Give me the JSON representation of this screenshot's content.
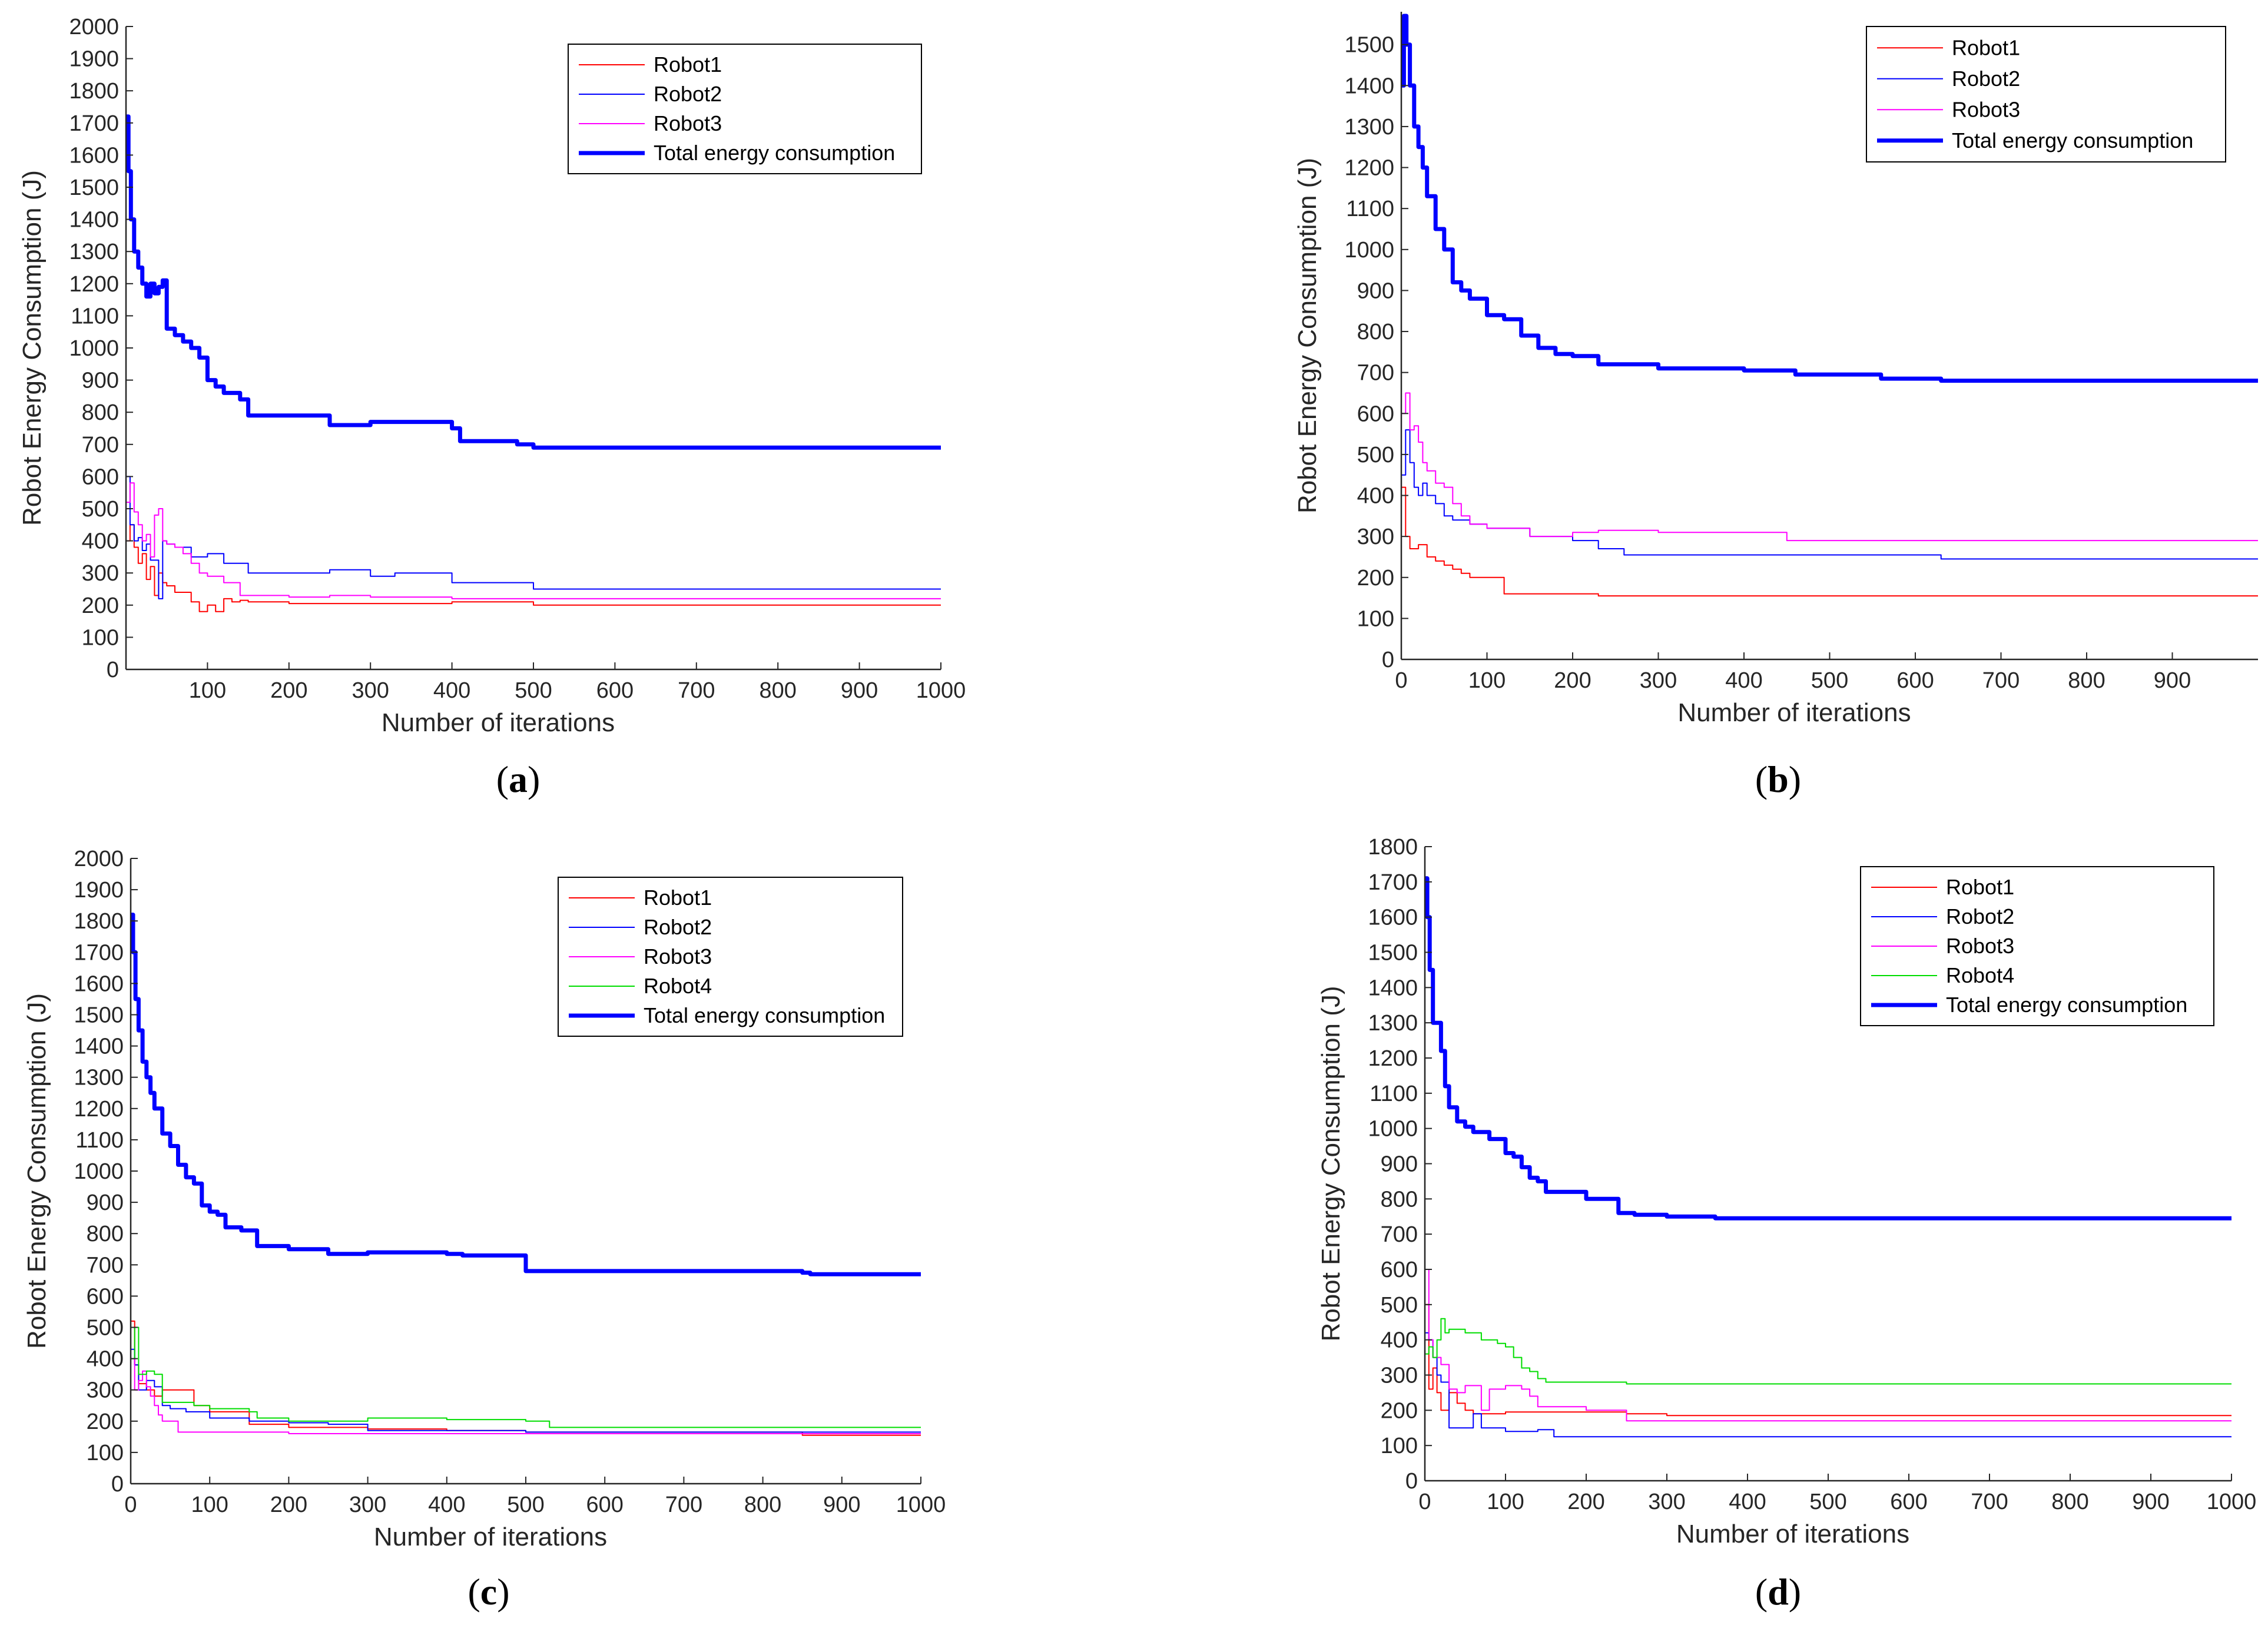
{
  "colors": {
    "robot1": "#ff0000",
    "robot2": "#0000ff",
    "robot3": "#ff00ff",
    "robot4": "#00dd00",
    "total": "#0000ff",
    "axis": "#262626"
  },
  "chart_data": [
    {
      "id": "a",
      "type": "line",
      "panel_label": "a",
      "xlabel": "Number of iterations",
      "ylabel": "Robot Energy Consumption (J)",
      "xlim": [
        0,
        1000
      ],
      "ylim": [
        0,
        2000
      ],
      "xticks": [
        100,
        200,
        300,
        400,
        500,
        600,
        700,
        800,
        900,
        1000
      ],
      "yticks": [
        0,
        100,
        200,
        300,
        400,
        500,
        600,
        700,
        800,
        900,
        1000,
        1100,
        1200,
        1300,
        1400,
        1500,
        1600,
        1700,
        1800,
        1900,
        2000
      ],
      "legend": "top-right",
      "series": [
        {
          "name": "Robot1",
          "color_key": "robot1",
          "width": 2,
          "x": [
            0,
            5,
            10,
            15,
            20,
            25,
            30,
            35,
            40,
            45,
            50,
            60,
            70,
            80,
            90,
            100,
            110,
            120,
            130,
            140,
            150,
            200,
            300,
            400,
            500,
            1000
          ],
          "y": [
            400,
            450,
            380,
            330,
            360,
            280,
            320,
            230,
            300,
            270,
            260,
            240,
            240,
            210,
            180,
            200,
            180,
            220,
            210,
            215,
            210,
            205,
            205,
            210,
            200,
            200
          ]
        },
        {
          "name": "Robot2",
          "color_key": "robot2",
          "width": 2,
          "x": [
            0,
            5,
            10,
            15,
            20,
            25,
            30,
            40,
            45,
            50,
            60,
            80,
            100,
            120,
            150,
            200,
            250,
            300,
            330,
            360,
            400,
            500,
            1000
          ],
          "y": [
            600,
            450,
            400,
            410,
            370,
            390,
            340,
            220,
            400,
            390,
            380,
            350,
            360,
            330,
            300,
            300,
            310,
            290,
            300,
            300,
            270,
            250,
            250
          ]
        },
        {
          "name": "Robot3",
          "color_key": "robot3",
          "width": 2,
          "x": [
            0,
            5,
            10,
            15,
            20,
            25,
            30,
            35,
            40,
            45,
            50,
            60,
            70,
            80,
            90,
            100,
            120,
            140,
            200,
            250,
            300,
            400,
            500,
            1000
          ],
          "y": [
            520,
            580,
            490,
            450,
            400,
            420,
            350,
            480,
            500,
            400,
            390,
            380,
            360,
            330,
            300,
            290,
            270,
            230,
            225,
            230,
            225,
            220,
            220,
            220
          ]
        },
        {
          "name": "Total energy consumption",
          "color_key": "total",
          "width": 7,
          "x": [
            0,
            3,
            6,
            10,
            15,
            20,
            25,
            30,
            35,
            40,
            45,
            50,
            60,
            70,
            80,
            90,
            100,
            110,
            120,
            130,
            140,
            150,
            200,
            250,
            300,
            350,
            400,
            410,
            480,
            500,
            1000
          ],
          "y": [
            1720,
            1550,
            1400,
            1300,
            1250,
            1200,
            1160,
            1200,
            1170,
            1190,
            1210,
            1060,
            1040,
            1020,
            1000,
            970,
            900,
            880,
            860,
            860,
            840,
            790,
            790,
            760,
            770,
            770,
            750,
            710,
            700,
            690,
            690
          ]
        }
      ]
    },
    {
      "id": "b",
      "type": "line",
      "panel_label": "b",
      "xlabel": "Number of iterations",
      "ylabel": "Robot Energy Consumption (J)",
      "xlim": [
        0,
        1000
      ],
      "ylim": [
        0,
        1580
      ],
      "xticks": [
        0,
        100,
        200,
        300,
        400,
        500,
        600,
        700,
        800,
        900
      ],
      "yticks": [
        0,
        100,
        200,
        300,
        400,
        500,
        600,
        700,
        800,
        900,
        1000,
        1100,
        1200,
        1300,
        1400,
        1500
      ],
      "legend": "top-right",
      "series": [
        {
          "name": "Robot1",
          "color_key": "robot1",
          "width": 2,
          "x": [
            0,
            5,
            10,
            20,
            30,
            40,
            50,
            60,
            70,
            80,
            100,
            110,
            120,
            200,
            230,
            1000
          ],
          "y": [
            420,
            300,
            270,
            280,
            250,
            240,
            230,
            220,
            210,
            200,
            200,
            200,
            160,
            160,
            155,
            155
          ]
        },
        {
          "name": "Robot2",
          "color_key": "robot2",
          "width": 2,
          "x": [
            0,
            5,
            10,
            15,
            20,
            25,
            30,
            40,
            50,
            60,
            80,
            100,
            150,
            200,
            230,
            260,
            500,
            630,
            1000
          ],
          "y": [
            450,
            560,
            480,
            420,
            400,
            430,
            400,
            380,
            350,
            340,
            330,
            320,
            300,
            290,
            270,
            255,
            255,
            245,
            245
          ]
        },
        {
          "name": "Robot3",
          "color_key": "robot3",
          "width": 2,
          "x": [
            0,
            5,
            10,
            15,
            20,
            25,
            30,
            40,
            50,
            60,
            70,
            80,
            100,
            150,
            200,
            230,
            300,
            450,
            1000
          ],
          "y": [
            600,
            650,
            560,
            570,
            530,
            480,
            460,
            430,
            420,
            380,
            350,
            330,
            320,
            300,
            310,
            315,
            310,
            290,
            290
          ]
        },
        {
          "name": "Total energy consumption",
          "color_key": "total",
          "width": 7,
          "x": [
            0,
            3,
            6,
            10,
            15,
            20,
            25,
            30,
            40,
            50,
            60,
            70,
            80,
            100,
            120,
            140,
            160,
            180,
            200,
            230,
            300,
            400,
            460,
            560,
            630,
            1000
          ],
          "y": [
            1400,
            1570,
            1500,
            1400,
            1300,
            1250,
            1200,
            1130,
            1050,
            1000,
            920,
            900,
            880,
            840,
            830,
            790,
            760,
            745,
            740,
            720,
            710,
            705,
            695,
            685,
            680,
            680
          ]
        }
      ]
    },
    {
      "id": "c",
      "type": "line",
      "panel_label": "c",
      "xlabel": "Number of iterations",
      "ylabel": "Robot Energy Consumption (J)",
      "xlim": [
        0,
        1000
      ],
      "ylim": [
        0,
        2000
      ],
      "xticks": [
        0,
        100,
        200,
        300,
        400,
        500,
        600,
        700,
        800,
        900,
        1000
      ],
      "yticks": [
        0,
        100,
        200,
        300,
        400,
        500,
        600,
        700,
        800,
        900,
        1000,
        1100,
        1200,
        1300,
        1400,
        1500,
        1600,
        1700,
        1800,
        1900,
        2000
      ],
      "legend": "top-right",
      "series": [
        {
          "name": "Robot1",
          "color_key": "robot1",
          "width": 2,
          "x": [
            0,
            5,
            10,
            20,
            30,
            40,
            50,
            70,
            80,
            100,
            150,
            200,
            300,
            400,
            500,
            850,
            1000
          ],
          "y": [
            520,
            380,
            320,
            300,
            280,
            300,
            300,
            300,
            250,
            230,
            190,
            180,
            175,
            170,
            165,
            155,
            155
          ]
        },
        {
          "name": "Robot2",
          "color_key": "robot2",
          "width": 2,
          "x": [
            0,
            5,
            10,
            20,
            30,
            40,
            50,
            70,
            100,
            150,
            200,
            250,
            300,
            500,
            1000
          ],
          "y": [
            430,
            380,
            300,
            330,
            310,
            250,
            240,
            230,
            210,
            200,
            195,
            190,
            170,
            165,
            165
          ]
        },
        {
          "name": "Robot3",
          "color_key": "robot3",
          "width": 2,
          "x": [
            0,
            5,
            10,
            15,
            20,
            25,
            30,
            35,
            40,
            50,
            60,
            100,
            200,
            300,
            1000
          ],
          "y": [
            400,
            300,
            330,
            360,
            310,
            280,
            250,
            220,
            200,
            200,
            165,
            165,
            160,
            160,
            160
          ]
        },
        {
          "name": "Robot4",
          "color_key": "robot4",
          "width": 2,
          "x": [
            0,
            5,
            10,
            20,
            30,
            40,
            60,
            80,
            100,
            150,
            160,
            200,
            300,
            400,
            500,
            530,
            1000
          ],
          "y": [
            400,
            500,
            350,
            360,
            350,
            260,
            260,
            250,
            240,
            230,
            210,
            200,
            210,
            205,
            200,
            180,
            180
          ]
        },
        {
          "name": "Total energy consumption",
          "color_key": "total",
          "width": 7,
          "x": [
            0,
            3,
            6,
            10,
            15,
            20,
            25,
            30,
            40,
            50,
            60,
            70,
            80,
            90,
            100,
            110,
            120,
            140,
            160,
            170,
            200,
            250,
            300,
            400,
            420,
            490,
            500,
            850,
            860,
            1000
          ],
          "y": [
            1820,
            1700,
            1550,
            1450,
            1350,
            1300,
            1250,
            1200,
            1120,
            1080,
            1020,
            980,
            960,
            890,
            870,
            860,
            820,
            810,
            760,
            760,
            750,
            735,
            740,
            735,
            730,
            730,
            680,
            675,
            670,
            670
          ]
        }
      ]
    },
    {
      "id": "d",
      "type": "line",
      "panel_label": "d",
      "xlabel": "Number of iterations",
      "ylabel": "Robot Energy Consumption (J)",
      "xlim": [
        0,
        1000
      ],
      "ylim": [
        0,
        1800
      ],
      "xticks": [
        0,
        100,
        200,
        300,
        400,
        500,
        600,
        700,
        800,
        900,
        1000
      ],
      "yticks": [
        0,
        100,
        200,
        300,
        400,
        500,
        600,
        700,
        800,
        900,
        1000,
        1100,
        1200,
        1300,
        1400,
        1500,
        1600,
        1700,
        1800
      ],
      "legend": "top-right",
      "series": [
        {
          "name": "Robot1",
          "color_key": "robot1",
          "width": 2,
          "x": [
            0,
            5,
            10,
            15,
            20,
            30,
            40,
            50,
            60,
            80,
            100,
            200,
            250,
            300,
            1000
          ],
          "y": [
            500,
            260,
            320,
            250,
            200,
            250,
            220,
            200,
            190,
            190,
            195,
            195,
            190,
            185,
            185
          ]
        },
        {
          "name": "Robot2",
          "color_key": "robot2",
          "width": 2,
          "x": [
            0,
            5,
            10,
            15,
            20,
            30,
            40,
            60,
            70,
            80,
            100,
            140,
            160,
            1000
          ],
          "y": [
            420,
            400,
            350,
            300,
            280,
            150,
            150,
            190,
            150,
            150,
            140,
            145,
            125,
            125
          ]
        },
        {
          "name": "Robot3",
          "color_key": "robot3",
          "width": 2,
          "x": [
            0,
            5,
            10,
            20,
            30,
            40,
            50,
            70,
            80,
            100,
            120,
            130,
            140,
            200,
            250,
            1000
          ],
          "y": [
            600,
            400,
            350,
            330,
            260,
            250,
            270,
            200,
            260,
            270,
            260,
            240,
            210,
            200,
            170,
            170
          ]
        },
        {
          "name": "Robot4",
          "color_key": "robot4",
          "width": 2,
          "x": [
            0,
            5,
            10,
            15,
            20,
            25,
            30,
            50,
            70,
            90,
            100,
            110,
            120,
            130,
            140,
            150,
            200,
            250,
            1000
          ],
          "y": [
            360,
            380,
            350,
            400,
            460,
            420,
            430,
            420,
            400,
            390,
            380,
            350,
            320,
            310,
            290,
            280,
            280,
            275,
            275
          ]
        },
        {
          "name": "Total energy consumption",
          "color_key": "total",
          "width": 7,
          "x": [
            0,
            3,
            6,
            10,
            15,
            20,
            25,
            30,
            40,
            50,
            60,
            70,
            80,
            100,
            110,
            120,
            130,
            140,
            150,
            200,
            240,
            260,
            300,
            360,
            1000
          ],
          "y": [
            1710,
            1600,
            1450,
            1300,
            1300,
            1220,
            1120,
            1060,
            1020,
            1005,
            990,
            990,
            970,
            930,
            920,
            890,
            860,
            850,
            820,
            800,
            760,
            755,
            750,
            745,
            745
          ]
        }
      ]
    }
  ]
}
